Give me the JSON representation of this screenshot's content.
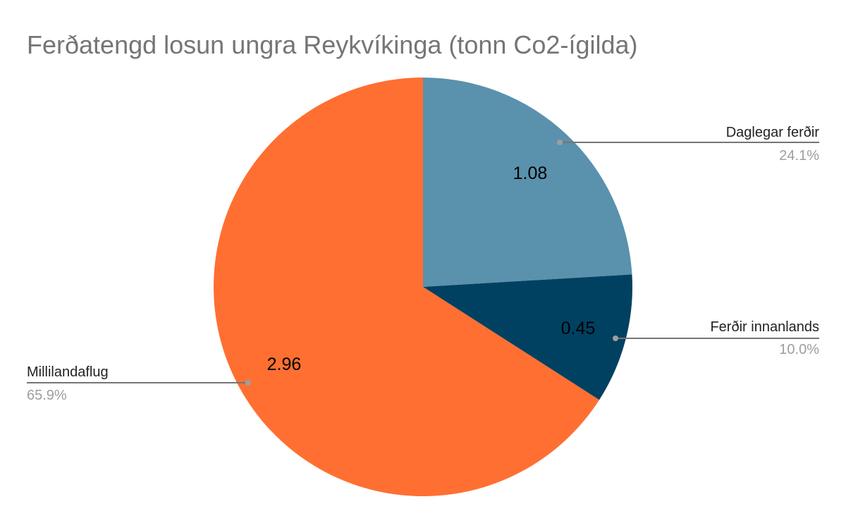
{
  "chart_data": {
    "type": "pie",
    "title": "Ferðatengd losun ungra Reykvíkinga (tonn Co2-ígilda)",
    "slices": [
      {
        "label": "Daglegar ferðir",
        "value": 1.08,
        "value_label": "1.08",
        "percent_label": "24.1%",
        "color": "#5a91ad"
      },
      {
        "label": "Ferðir innanlands",
        "value": 0.45,
        "value_label": "0.45",
        "percent_label": "10.0%",
        "color": "#004161"
      },
      {
        "label": "Millilandaflug",
        "value": 2.96,
        "value_label": "2.96",
        "percent_label": "65.9%",
        "color": "#ff6f31"
      }
    ],
    "start_angle_deg": 0,
    "direction": "clockwise",
    "legend": "callout-labels"
  }
}
